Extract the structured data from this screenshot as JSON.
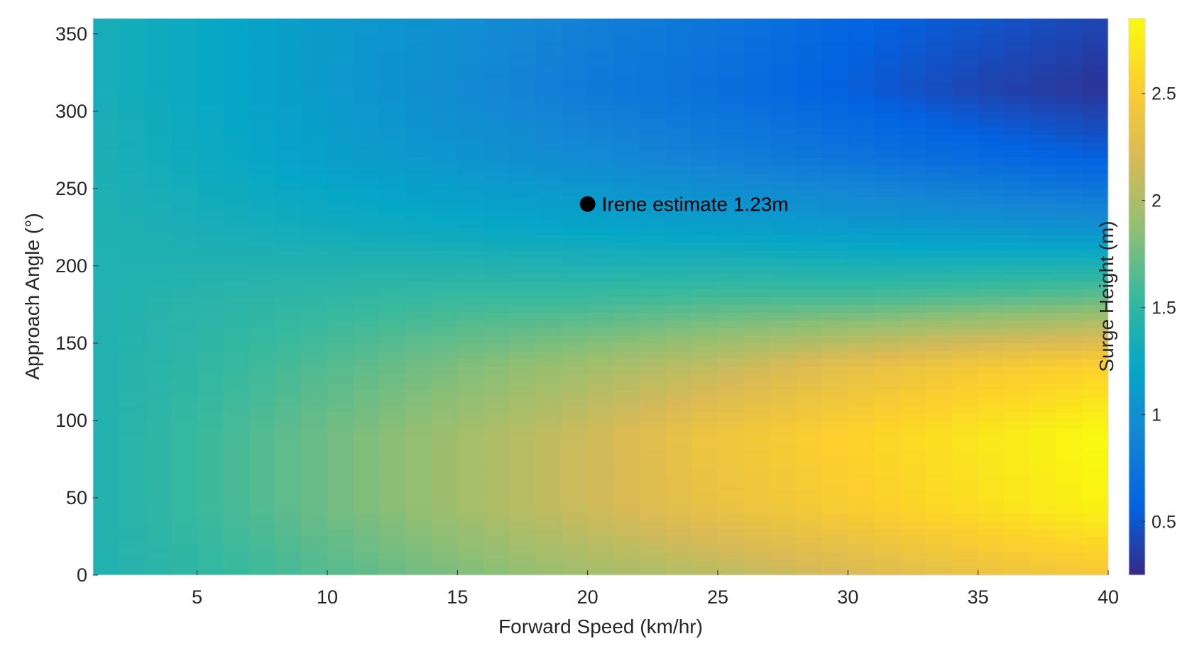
{
  "chart_data": {
    "type": "heatmap",
    "title": "",
    "xlabel": "Forward Speed (km/hr)",
    "ylabel": "Approach Angle (°)",
    "colorbar_label": "Surge Height (m)",
    "colormap": "parula",
    "xlim": [
      1,
      40
    ],
    "ylim": [
      0,
      360
    ],
    "clim": [
      0.25,
      2.85
    ],
    "x_ticks": [
      5,
      10,
      15,
      20,
      25,
      30,
      35,
      40
    ],
    "y_ticks": [
      0,
      50,
      100,
      150,
      200,
      250,
      300,
      350
    ],
    "colorbar_ticks": [
      0.5,
      1,
      1.5,
      2,
      2.5
    ],
    "colorbar_tick_labels": [
      "0.5",
      "1",
      "1.5",
      "2",
      "2.5"
    ],
    "x": [
      1,
      5,
      10,
      15,
      20,
      25,
      30,
      35,
      40
    ],
    "y": [
      0,
      45,
      90,
      135,
      180,
      225,
      270,
      315,
      360
    ],
    "z": [
      [
        1.4,
        1.5,
        1.65,
        1.8,
        1.95,
        2.05,
        2.2,
        2.35,
        2.45
      ],
      [
        1.4,
        1.55,
        1.75,
        1.95,
        2.15,
        2.35,
        2.5,
        2.65,
        2.8
      ],
      [
        1.4,
        1.55,
        1.75,
        1.95,
        2.15,
        2.4,
        2.55,
        2.7,
        2.85
      ],
      [
        1.4,
        1.5,
        1.65,
        1.8,
        1.95,
        2.1,
        2.3,
        2.45,
        2.55
      ],
      [
        1.4,
        1.45,
        1.5,
        1.55,
        1.55,
        1.6,
        1.6,
        1.65,
        1.7
      ],
      [
        1.4,
        1.35,
        1.3,
        1.25,
        1.2,
        1.15,
        1.1,
        1.05,
        1.0
      ],
      [
        1.38,
        1.28,
        1.15,
        1.05,
        0.95,
        0.85,
        0.75,
        0.65,
        0.55
      ],
      [
        1.35,
        1.25,
        1.1,
        0.95,
        0.8,
        0.7,
        0.55,
        0.4,
        0.3
      ],
      [
        1.35,
        1.25,
        1.1,
        1.0,
        0.85,
        0.75,
        0.6,
        0.5,
        0.4
      ]
    ],
    "annotations": [
      {
        "x": 20,
        "y": 240,
        "label": "Irene estimate 1.23m"
      }
    ],
    "colors": {
      "parula": [
        "#352a87",
        "#0363e1",
        "#1485d4",
        "#06a7c6",
        "#38b99e",
        "#92bf73",
        "#d9ba56",
        "#fcce2e",
        "#f9fb0e"
      ],
      "marker": "#000000"
    }
  }
}
